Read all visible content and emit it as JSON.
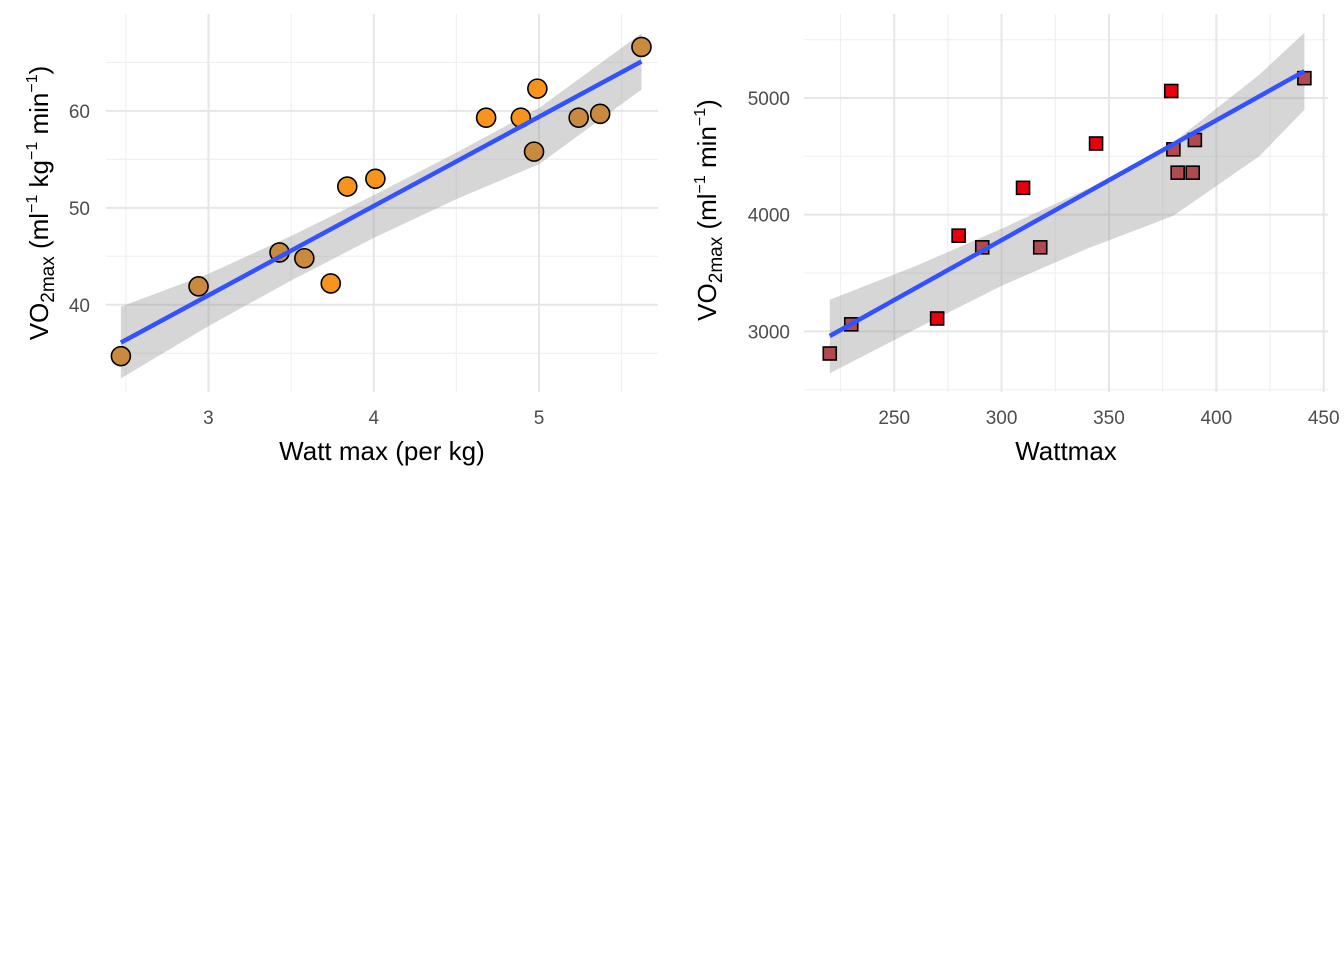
{
  "chart_data": [
    {
      "type": "scatter",
      "xlabel": "Watt max (per kg)",
      "ylabel": {
        "main": "VO",
        "sub": "2max",
        "unit_open": " (ml",
        "s1": "−1",
        "mid1": " kg",
        "s2": "−1",
        "mid2": " min",
        "s3": "−1",
        "unit_close": ")"
      },
      "xlim": [
        2.38,
        5.72
      ],
      "ylim": [
        31.0,
        70.0
      ],
      "x_ticks": [
        3,
        4,
        5
      ],
      "x_tick_labels": [
        "3",
        "4",
        "5"
      ],
      "y_ticks": [
        40,
        50,
        60
      ],
      "y_tick_labels": [
        "40",
        "50",
        "60"
      ],
      "grid": true,
      "marker": "circle",
      "point_color": "#f7941d",
      "point_color_in_band": "#c98a40",
      "point_stroke": "#000000",
      "fit_line_color": "#3352ff",
      "band_color": "#999999",
      "points": [
        {
          "x": 2.47,
          "y": 34.7
        },
        {
          "x": 2.94,
          "y": 41.9
        },
        {
          "x": 3.43,
          "y": 45.4
        },
        {
          "x": 3.58,
          "y": 44.8
        },
        {
          "x": 3.74,
          "y": 42.2
        },
        {
          "x": 3.84,
          "y": 52.2
        },
        {
          "x": 4.01,
          "y": 53.0
        },
        {
          "x": 4.68,
          "y": 59.3
        },
        {
          "x": 4.89,
          "y": 59.3
        },
        {
          "x": 4.97,
          "y": 55.8
        },
        {
          "x": 4.99,
          "y": 62.3
        },
        {
          "x": 5.24,
          "y": 59.3
        },
        {
          "x": 5.37,
          "y": 59.7
        },
        {
          "x": 5.62,
          "y": 66.6
        }
      ],
      "fit": {
        "x": [
          2.47,
          5.62
        ],
        "y": [
          36.1,
          65.1
        ]
      },
      "band": {
        "x": [
          2.47,
          3.0,
          3.5,
          4.0,
          4.5,
          5.0,
          5.62
        ],
        "upper": [
          39.8,
          43.2,
          47.1,
          51.3,
          55.7,
          60.3,
          68.0
        ],
        "lower": [
          32.4,
          37.8,
          42.5,
          46.9,
          50.9,
          54.5,
          62.2
        ]
      }
    },
    {
      "type": "scatter",
      "xlabel": "Wattmax",
      "ylabel": {
        "main": "VO",
        "sub": "2max",
        "unit_open": " (ml",
        "s1": "−1",
        "mid2": " min",
        "s3": "−1",
        "unit_close": ")"
      },
      "xlim": [
        208,
        452
      ],
      "ylim": [
        2480,
        5720
      ],
      "x_ticks": [
        250,
        300,
        350,
        400,
        450
      ],
      "x_tick_labels": [
        "250",
        "300",
        "350",
        "400",
        "450"
      ],
      "y_ticks": [
        3000,
        4000,
        5000
      ],
      "y_tick_labels": [
        "3000",
        "4000",
        "5000"
      ],
      "grid": true,
      "marker": "square",
      "point_color": "#e8000b",
      "point_color_in_band": "#b04a4e",
      "point_stroke": "#000000",
      "fit_line_color": "#3352ff",
      "band_color": "#999999",
      "points": [
        {
          "x": 220,
          "y": 2810
        },
        {
          "x": 230,
          "y": 3060
        },
        {
          "x": 270,
          "y": 3110
        },
        {
          "x": 280,
          "y": 3820
        },
        {
          "x": 291,
          "y": 3720
        },
        {
          "x": 310,
          "y": 4230
        },
        {
          "x": 318,
          "y": 3720
        },
        {
          "x": 344,
          "y": 4610
        },
        {
          "x": 379,
          "y": 5060
        },
        {
          "x": 380,
          "y": 4560
        },
        {
          "x": 382,
          "y": 4360
        },
        {
          "x": 389,
          "y": 4360
        },
        {
          "x": 390,
          "y": 4640
        },
        {
          "x": 441,
          "y": 5170
        }
      ],
      "fit": {
        "x": [
          220,
          441
        ],
        "y": [
          2960,
          5230
        ]
      },
      "band": {
        "x": [
          220,
          260,
          300,
          340,
          380,
          420,
          441
        ],
        "upper": [
          3270,
          3560,
          3880,
          4220,
          4620,
          5200,
          5560
        ],
        "lower": [
          2640,
          3020,
          3390,
          3710,
          3990,
          4500,
          4900
        ]
      }
    }
  ]
}
